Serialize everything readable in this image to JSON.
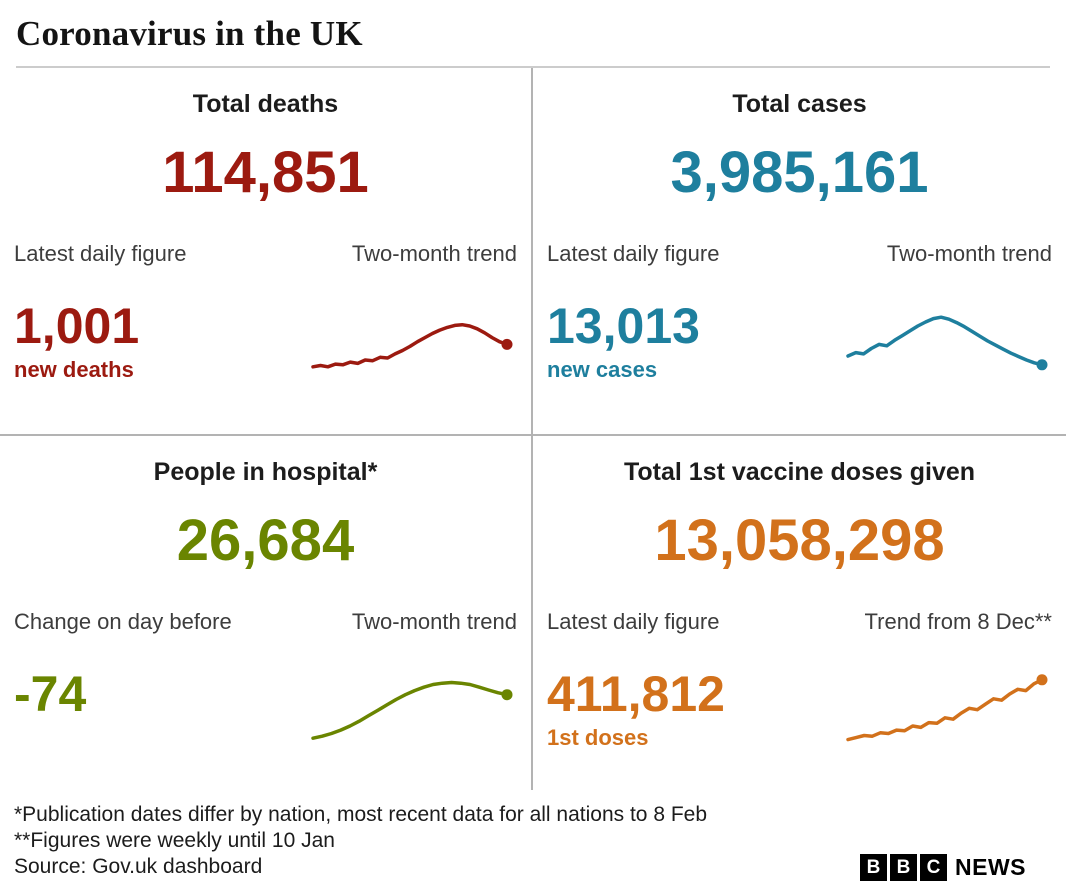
{
  "title": "Coronavirus in the UK",
  "panels": [
    {
      "heading": "Total deaths",
      "total": "114,851",
      "label_left": "Latest daily figure",
      "label_right": "Two-month trend",
      "daily_value": "1,001",
      "daily_label": "new deaths",
      "color": "#9c1a10"
    },
    {
      "heading": "Total cases",
      "total": "3,985,161",
      "label_left": "Latest daily figure",
      "label_right": "Two-month trend",
      "daily_value": "13,013",
      "daily_label": "new cases",
      "color": "#1e7f9e"
    },
    {
      "heading": "People in hospital*",
      "total": "26,684",
      "label_left": "Change on day before",
      "label_right": "Two-month trend",
      "daily_value": "-74",
      "daily_label": "",
      "color": "#6a8500"
    },
    {
      "heading": "Total 1st vaccine doses given",
      "total": "13,058,298",
      "label_left": "Latest daily figure",
      "label_right": "Trend from 8 Dec**",
      "daily_value": "411,812",
      "daily_label": "1st doses",
      "color": "#d2711b"
    }
  ],
  "footnotes": [
    "*Publication dates differ by nation, most recent data for all nations to 8 Feb",
    "**Figures were weekly until 10 Jan",
    "Source: Gov.uk dashboard"
  ],
  "logo": {
    "letters": [
      "B",
      "B",
      "C"
    ],
    "suffix": "NEWS"
  },
  "chart_data": [
    {
      "type": "line",
      "title": "Total deaths — two-month trend sparkline",
      "units": "relative (no axes shown, values estimated 0-100)",
      "values": [
        12,
        14,
        12,
        16,
        15,
        19,
        17,
        22,
        21,
        26,
        25,
        31,
        36,
        42,
        49,
        55,
        61,
        66,
        70,
        73,
        74,
        72,
        68,
        62,
        55,
        49,
        45
      ],
      "end_marker": true,
      "color": "#9c1a10"
    },
    {
      "type": "line",
      "title": "Total cases — two-month trend sparkline",
      "units": "relative (no axes shown, values estimated 0-100)",
      "values": [
        28,
        33,
        31,
        39,
        45,
        43,
        51,
        58,
        65,
        72,
        78,
        83,
        85,
        82,
        77,
        71,
        64,
        57,
        50,
        44,
        38,
        32,
        27,
        22,
        18,
        15
      ],
      "end_marker": true,
      "color": "#1e7f9e"
    },
    {
      "type": "line",
      "title": "People in hospital — two-month trend sparkline",
      "units": "relative (no axes shown, values estimated 0-100)",
      "values": [
        7,
        10,
        14,
        19,
        25,
        32,
        40,
        48,
        56,
        64,
        71,
        77,
        82,
        86,
        88,
        89,
        88,
        86,
        82,
        78,
        74,
        71
      ],
      "end_marker": true,
      "color": "#6a8500"
    },
    {
      "type": "line",
      "title": "1st vaccine doses — trend from 8 Dec sparkline",
      "units": "relative (no axes shown, values estimated 0-100)",
      "values": [
        5,
        8,
        11,
        10,
        15,
        14,
        19,
        18,
        25,
        23,
        30,
        29,
        37,
        35,
        44,
        51,
        49,
        57,
        65,
        63,
        72,
        79,
        77,
        87,
        93
      ],
      "end_marker": true,
      "color": "#d2711b"
    }
  ]
}
